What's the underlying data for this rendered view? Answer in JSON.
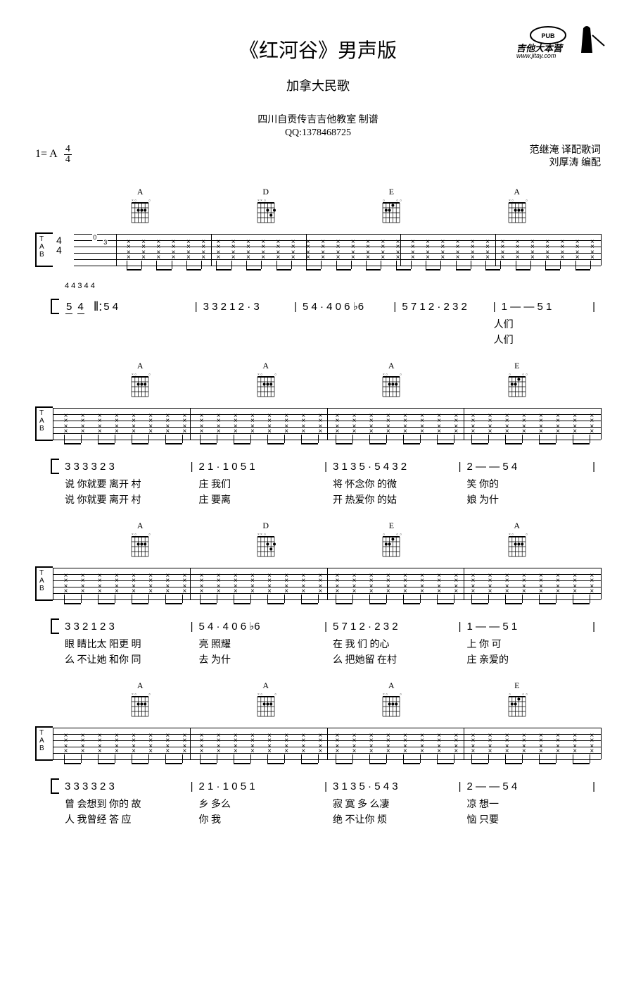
{
  "title": "《红河谷》男声版",
  "subtitle": "加拿大民歌",
  "studio": "四川自贡传吉吉他教室 制谱",
  "qq": "QQ:1378468725",
  "key": "1= A",
  "time_num": "4",
  "time_den": "4",
  "credit1": "范继淹 译配歌词",
  "credit2": "刘厚涛 编配",
  "logo_url": "www.jitay.com",
  "logo_brand": "吉他大本营",
  "systems": [
    {
      "chords": [
        "A",
        "D",
        "E",
        "A"
      ],
      "tab_time_sig": true,
      "fingerings": "4                                          4  3              4                    4",
      "jianpu_segments": [
        "5 4",
        "‖: 3  3 2 1   2 · 3",
        "5 4 ·      4 0 6 ♭6",
        "5    7 1 2 · 2 3 2",
        "1   —  —   5 1"
      ],
      "lyrics1_parts": [
        "",
        "",
        "",
        "",
        "人们"
      ],
      "lyrics2_parts": [
        "",
        "",
        "",
        "",
        "人们"
      ]
    },
    {
      "chords": [
        "A",
        "A",
        "A",
        "E"
      ],
      "jianpu_segments": [
        "3    3 3 3    2 3",
        "2 1 ·      1 0 5 1",
        "3    1 3 5 · 5 4 3 2",
        "2   —  —   5 4"
      ],
      "lyrics1_parts": [
        "说   你就要  离开  村",
        "庄           我们",
        "将   怀念你  的微",
        "笑           你的"
      ],
      "lyrics2_parts": [
        "说   你就要  离开  村",
        "庄           要离",
        "开   热爱你  的姑",
        "娘           为什"
      ]
    },
    {
      "chords": [
        "A",
        "D",
        "E",
        "A"
      ],
      "jianpu_segments": [
        "3   3 2 1    2 3",
        "5 4 ·      4 0 6 ♭6",
        "5    7 1 2 · 2 3 2",
        "1   —  —   5  1"
      ],
      "lyrics1_parts": [
        "眼   睛比太  阳更  明",
        "亮           照耀",
        "在   我  们  的心",
        "上           你 可"
      ],
      "lyrics2_parts": [
        "么   不让她  和你  同",
        "去           为什",
        "么   把她留  在村",
        "庄           亲爱的"
      ]
    },
    {
      "chords": [
        "A",
        "A",
        "A",
        "E"
      ],
      "jianpu_segments": [
        "3    3 3 3    2 3",
        "2 1 ·      1 0 5 1",
        "3    1 3 5 · 5 4 3",
        "2   —  —   5 4"
      ],
      "lyrics1_parts": [
        "曾   会想到  你的  故",
        "乡           多么",
        "寂   寞  多  么凄",
        "凉           想一"
      ],
      "lyrics2_parts": [
        "人   我曾经  答    应",
        "你           我",
        "绝   不让你  烦",
        "恼           只要"
      ]
    }
  ]
}
